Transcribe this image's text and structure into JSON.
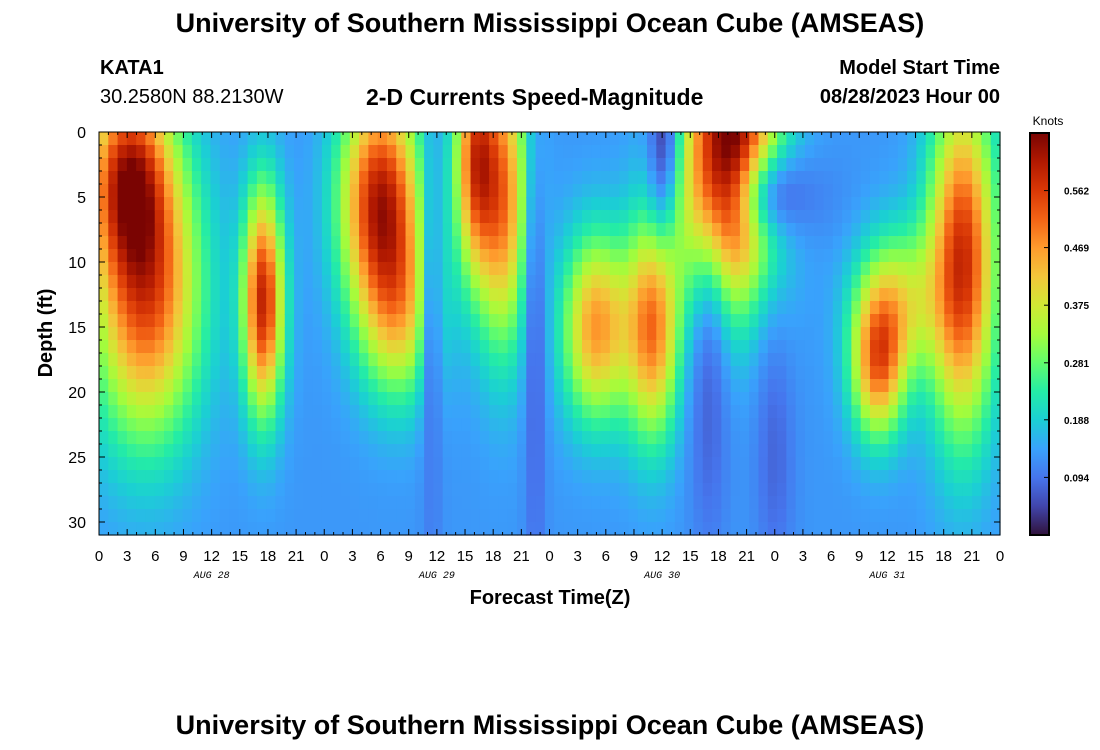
{
  "page": {
    "title": "University of Southern Mississippi Ocean Cube (AMSEAS)",
    "station": "KATA1",
    "location": "30.2580N  88.2130W",
    "subtitle": "2-D Currents Speed-Magnitude",
    "model_start_label": "Model Start Time",
    "model_start_value": "08/28/2023 Hour 00",
    "footer_title": "University of Southern Mississippi Ocean Cube (AMSEAS)"
  },
  "chart_data": {
    "type": "heatmap",
    "xlabel": "Forecast Time(Z)",
    "ylabel": "Depth (ft)",
    "x_ticks": [
      "0",
      "3",
      "6",
      "9",
      "12",
      "15",
      "18",
      "21",
      "0",
      "3",
      "6",
      "9",
      "12",
      "15",
      "18",
      "21",
      "0",
      "3",
      "6",
      "9",
      "12",
      "15",
      "18",
      "21",
      "0",
      "3",
      "6",
      "9",
      "12",
      "15",
      "18",
      "21",
      "0"
    ],
    "day_labels": [
      "AUG 28",
      "AUG 29",
      "AUG 30",
      "AUG 31"
    ],
    "y_ticks": [
      0,
      5,
      10,
      15,
      20,
      25,
      30
    ],
    "ylim": [
      0,
      31
    ],
    "x_range_hours": [
      0,
      96
    ],
    "colorbar": {
      "label": "Knots",
      "ticks": [
        0.094,
        0.188,
        0.281,
        0.375,
        0.469,
        0.562
      ],
      "range": [
        0.0,
        0.656
      ],
      "colors": [
        "#30123b",
        "#4145ab",
        "#4675ed",
        "#39a2fc",
        "#1bcfd4",
        "#24eca6",
        "#61fc6c",
        "#a4fc3b",
        "#d1e834",
        "#f3c63a",
        "#fe9b2d",
        "#f36315",
        "#d93806",
        "#b11901",
        "#7a0402"
      ]
    },
    "hotspots": [
      {
        "t": 5,
        "d": 12,
        "st": 4,
        "sd": 8,
        "v": 0.42
      },
      {
        "t": 3,
        "d": 3,
        "st": 3,
        "sd": 5,
        "v": 0.34
      },
      {
        "t": 17.5,
        "d": 13,
        "st": 1.5,
        "sd": 6,
        "v": 0.46
      },
      {
        "t": 30,
        "d": 5,
        "st": 3,
        "sd": 6,
        "v": 0.46
      },
      {
        "t": 32,
        "d": 14,
        "st": 3,
        "sd": 5,
        "v": 0.24
      },
      {
        "t": 40,
        "d": 2,
        "st": 1.5,
        "sd": 6,
        "v": 0.35
      },
      {
        "t": 43,
        "d": 5,
        "st": 2,
        "sd": 8,
        "v": 0.36
      },
      {
        "t": 53,
        "d": 15,
        "st": 2.5,
        "sd": 5,
        "v": 0.34
      },
      {
        "t": 59,
        "d": 15,
        "st": 2,
        "sd": 6,
        "v": 0.36
      },
      {
        "t": 67,
        "d": 3,
        "st": 3.5,
        "sd": 7,
        "v": 0.55
      },
      {
        "t": 69,
        "d": -4,
        "st": 3.5,
        "sd": 3,
        "v": 0.15
      },
      {
        "t": 83,
        "d": 18,
        "st": 2,
        "sd": 4,
        "v": 0.34
      },
      {
        "t": 85,
        "d": 13,
        "st": 3,
        "sd": 4,
        "v": 0.22
      },
      {
        "t": 92,
        "d": 10,
        "st": 2.5,
        "sd": 9,
        "v": 0.45
      }
    ],
    "lows": [
      {
        "t": 35.5,
        "d": 22,
        "st": 0.8,
        "sd": 16,
        "v": 0.1
      },
      {
        "t": 46.5,
        "d": 20,
        "st": 0.8,
        "sd": 14,
        "v": 0.08
      },
      {
        "t": 60,
        "d": 0,
        "st": 1.2,
        "sd": 5,
        "v": 0.06
      },
      {
        "t": 74,
        "d": 5,
        "st": 3.5,
        "sd": 2.5,
        "v": 0.1
      },
      {
        "t": 65,
        "d": 22,
        "st": 1.5,
        "sd": 8,
        "v": 0.08
      },
      {
        "t": 72,
        "d": 25,
        "st": 1.5,
        "sd": 7,
        "v": 0.08
      }
    ]
  }
}
